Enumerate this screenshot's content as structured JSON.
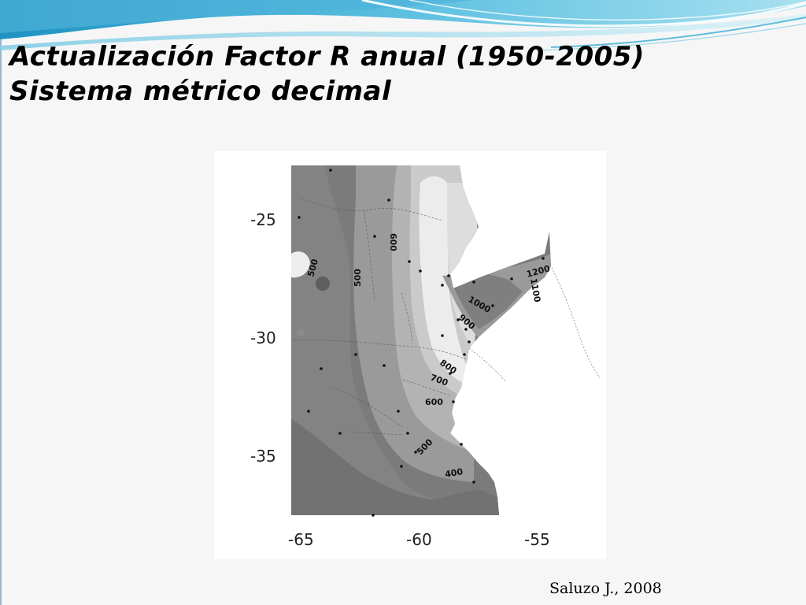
{
  "slide": {
    "title_line1": "Actualización Factor R anual (1950-2005)",
    "title_line2": "Sistema métrico decimal",
    "credit": "Saluzo J., 2008"
  },
  "map": {
    "y_ticks": [
      "-25",
      "-30",
      "-35"
    ],
    "x_ticks": [
      "-65",
      "-60",
      "-55"
    ],
    "contour_labels": [
      "500",
      "500",
      "600",
      "1200",
      "1100",
      "1000",
      "900",
      "800",
      "700",
      "600",
      "500",
      "400"
    ]
  },
  "colors": {
    "wave_dark": "#2aa0c9",
    "wave_light": "#9fd8ea",
    "map_dark": "#7a7a7a",
    "map_light": "#f0f0f0"
  }
}
